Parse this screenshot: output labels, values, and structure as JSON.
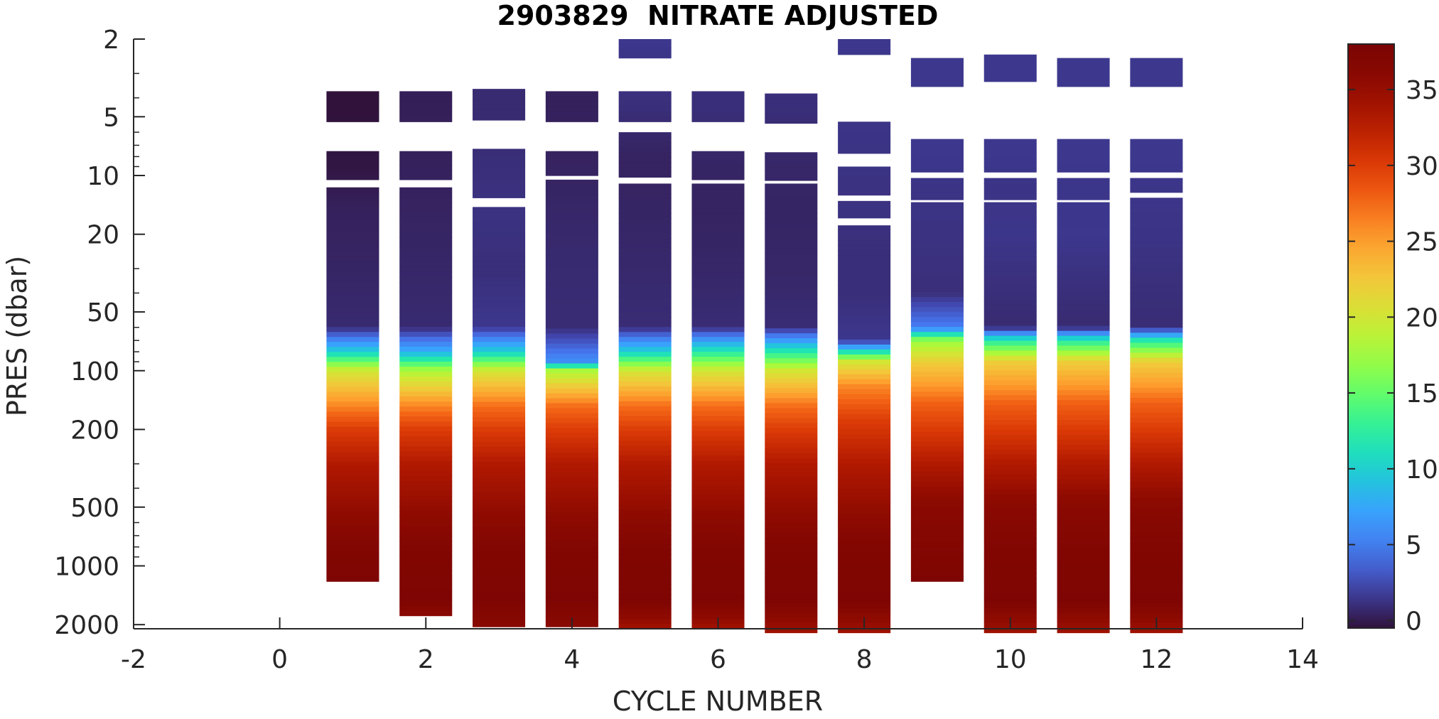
{
  "chart_data": {
    "type": "heatmap",
    "title": "2903829  NITRATE ADJUSTED",
    "xlabel": "CYCLE NUMBER",
    "ylabel": "PRES (dbar)",
    "xlim": [
      -2,
      14
    ],
    "ylim": [
      2,
      2100
    ],
    "y_scale": "log",
    "y_direction": "reversed",
    "x_ticks": [
      -2,
      0,
      2,
      4,
      6,
      8,
      10,
      12,
      14
    ],
    "x_tick_labels": [
      "-2",
      "0",
      "2",
      "4",
      "6",
      "8",
      "10",
      "12",
      "14"
    ],
    "y_ticks": [
      2,
      5,
      10,
      20,
      50,
      100,
      200,
      500,
      1000,
      2000
    ],
    "y_tick_labels": [
      "2",
      "5",
      "10",
      "20",
      "50",
      "100",
      "200",
      "500",
      "1000",
      "2000"
    ],
    "colorbar": {
      "colormap": "turbo",
      "clim": [
        -0.5,
        38
      ],
      "ticks": [
        0,
        5,
        10,
        15,
        20,
        25,
        30,
        35
      ],
      "tick_labels": [
        "0",
        "5",
        "10",
        "15",
        "20",
        "25",
        "30",
        "35"
      ]
    },
    "profiles": [
      {
        "cycle": 1,
        "pres": [
          4.5,
          9,
          15,
          30,
          60,
          80,
          100,
          150,
          200,
          300,
          500,
          800,
          1200
        ],
        "nitrate": [
          -0.5,
          -0.3,
          0.3,
          0.5,
          0.8,
          10,
          20,
          26,
          30,
          33,
          35,
          37,
          37.5
        ],
        "segments": [
          [
            3.7,
            5.3
          ],
          [
            7.5,
            10.5
          ],
          [
            11.5,
            1200
          ]
        ]
      },
      {
        "cycle": 2,
        "pres": [
          4.5,
          9,
          15,
          30,
          60,
          80,
          100,
          150,
          200,
          300,
          500,
          800,
          1500,
          1800
        ],
        "nitrate": [
          0.2,
          0.3,
          0.4,
          0.6,
          0.8,
          8,
          18,
          26,
          30,
          33,
          35,
          37,
          37.5,
          36
        ],
        "segments": [
          [
            3.7,
            5.3
          ],
          [
            7.5,
            10.5
          ],
          [
            11.5,
            1800
          ]
        ]
      },
      {
        "cycle": 3,
        "pres": [
          4.5,
          9,
          15,
          30,
          60,
          80,
          100,
          150,
          200,
          300,
          500,
          800,
          1500,
          2050
        ],
        "nitrate": [
          0.8,
          1.0,
          1.2,
          1.0,
          1.5,
          10,
          20,
          27,
          30,
          33,
          35,
          37,
          37.5,
          36
        ],
        "segments": [
          [
            3.6,
            5.2
          ],
          [
            7.3,
            13
          ],
          [
            14.5,
            2050
          ]
        ]
      },
      {
        "cycle": 4,
        "pres": [
          4.5,
          9,
          15,
          30,
          60,
          90,
          100,
          150,
          200,
          300,
          500,
          800,
          1500,
          2050
        ],
        "nitrate": [
          0.3,
          0.4,
          0.6,
          0.8,
          0.9,
          6,
          18,
          27,
          30,
          33,
          35,
          37,
          37.5,
          36
        ],
        "segments": [
          [
            3.7,
            5.3
          ],
          [
            7.5,
            10
          ],
          [
            10.5,
            2050
          ]
        ]
      },
      {
        "cycle": 5,
        "pres": [
          2,
          4.5,
          8,
          15,
          30,
          60,
          80,
          100,
          150,
          200,
          300,
          500,
          800,
          1500,
          2100
        ],
        "nitrate": [
          1.5,
          1.0,
          0.4,
          0.5,
          0.7,
          0.9,
          10,
          20,
          27,
          30,
          33,
          35,
          37,
          37.5,
          34
        ],
        "segments": [
          [
            1.55,
            2.5
          ],
          [
            3.7,
            5.3
          ],
          [
            6,
            10.2
          ],
          [
            11,
            2100
          ]
        ]
      },
      {
        "cycle": 6,
        "pres": [
          4.5,
          9,
          15,
          30,
          60,
          80,
          100,
          150,
          200,
          300,
          500,
          800,
          1500,
          2100
        ],
        "nitrate": [
          1.0,
          0.5,
          0.4,
          0.6,
          0.9,
          12,
          20,
          27,
          30,
          33,
          35,
          37,
          37.5,
          34
        ],
        "segments": [
          [
            3.7,
            5.3
          ],
          [
            7.5,
            10.5
          ],
          [
            11,
            2100
          ]
        ]
      },
      {
        "cycle": 7,
        "pres": [
          4.5,
          9,
          15,
          30,
          60,
          80,
          100,
          150,
          200,
          300,
          500,
          800,
          1500,
          2200
        ],
        "nitrate": [
          1.0,
          0.6,
          0.5,
          0.6,
          0.9,
          12,
          20,
          27,
          30,
          33,
          35,
          37,
          37.5,
          34
        ],
        "segments": [
          [
            3.8,
            5.4
          ],
          [
            7.6,
            10.6
          ],
          [
            11,
            2200
          ]
        ]
      },
      {
        "cycle": 8,
        "pres": [
          2,
          6.5,
          11,
          15,
          25,
          40,
          70,
          90,
          120,
          180,
          300,
          500,
          800,
          1500,
          2200
        ],
        "nitrate": [
          1.5,
          1.3,
          1.2,
          1.2,
          1.0,
          1.0,
          1.5,
          20,
          26,
          30,
          33,
          35,
          37,
          37.5,
          34
        ],
        "segments": [
          [
            1.5,
            2.4
          ],
          [
            5.3,
            7.7
          ],
          [
            9,
            12.6
          ],
          [
            13.5,
            16.5
          ],
          [
            18,
            2200
          ]
        ]
      },
      {
        "cycle": 9,
        "pres": [
          3,
          8,
          11,
          20,
          40,
          60,
          70,
          90,
          150,
          300,
          500,
          1200
        ],
        "nitrate": [
          1.5,
          1.5,
          1.3,
          1.2,
          1.0,
          5,
          17,
          22,
          28,
          33,
          36,
          37.5
        ],
        "segments": [
          [
            2.5,
            3.5
          ],
          [
            6.5,
            9.6
          ],
          [
            10.3,
            13.3
          ],
          [
            13.7,
            1200
          ]
        ]
      },
      {
        "cycle": 10,
        "pres": [
          2.8,
          8,
          11,
          20,
          40,
          60,
          70,
          90,
          150,
          300,
          500,
          800,
          1500,
          2200
        ],
        "nitrate": [
          1.5,
          1.5,
          1.3,
          1.4,
          1.0,
          0.8,
          12,
          22,
          28,
          33,
          36,
          37,
          37.5,
          34
        ],
        "segments": [
          [
            2.4,
            3.3
          ],
          [
            6.5,
            9.6
          ],
          [
            10.3,
            13.3
          ],
          [
            13.7,
            2200
          ]
        ]
      },
      {
        "cycle": 11,
        "pres": [
          3,
          8,
          11,
          20,
          40,
          60,
          70,
          90,
          150,
          300,
          500,
          800,
          1500,
          2200
        ],
        "nitrate": [
          1.5,
          1.5,
          1.4,
          1.5,
          1.0,
          0.8,
          12,
          22,
          28,
          33,
          36,
          37,
          37.5,
          34
        ],
        "segments": [
          [
            2.5,
            3.5
          ],
          [
            6.5,
            9.6
          ],
          [
            10.3,
            13.3
          ],
          [
            13.7,
            2200
          ]
        ]
      },
      {
        "cycle": 12,
        "pres": [
          3,
          8,
          11,
          20,
          40,
          60,
          70,
          90,
          150,
          300,
          500,
          800,
          1500,
          2200
        ],
        "nitrate": [
          1.5,
          1.5,
          1.4,
          1.3,
          1.0,
          0.9,
          12,
          22,
          28,
          33,
          36,
          37,
          37.5,
          34
        ],
        "segments": [
          [
            2.5,
            3.5
          ],
          [
            6.5,
            9.6
          ],
          [
            10.3,
            12.2
          ],
          [
            13,
            2200
          ]
        ]
      }
    ]
  }
}
